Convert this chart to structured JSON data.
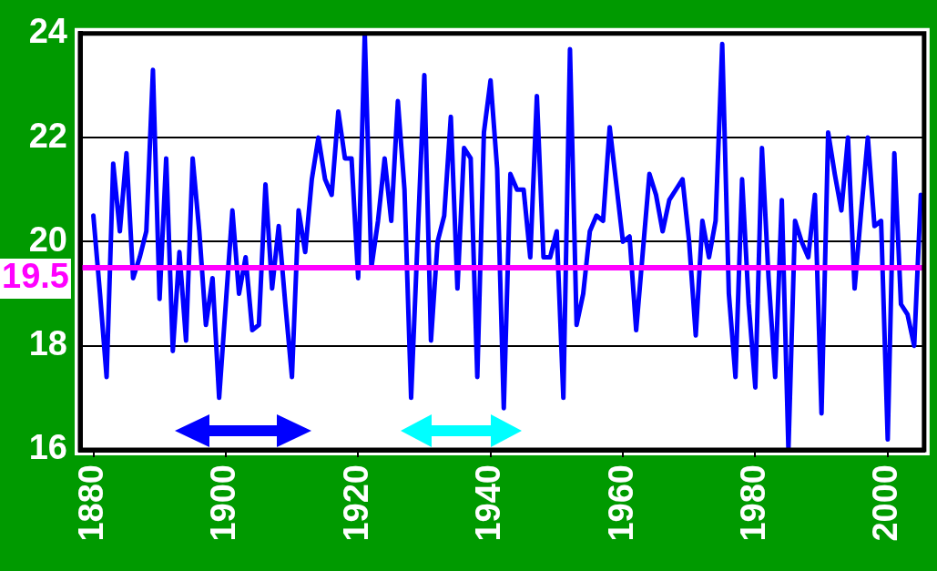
{
  "chart_data": {
    "type": "line",
    "x": [
      1880,
      1881,
      1882,
      1883,
      1884,
      1885,
      1886,
      1887,
      1888,
      1889,
      1890,
      1891,
      1892,
      1893,
      1894,
      1895,
      1896,
      1897,
      1898,
      1899,
      1900,
      1901,
      1902,
      1903,
      1904,
      1905,
      1906,
      1907,
      1908,
      1909,
      1910,
      1911,
      1912,
      1913,
      1914,
      1915,
      1916,
      1917,
      1918,
      1919,
      1920,
      1921,
      1922,
      1923,
      1924,
      1925,
      1926,
      1927,
      1928,
      1929,
      1930,
      1931,
      1932,
      1933,
      1934,
      1935,
      1936,
      1937,
      1938,
      1939,
      1940,
      1941,
      1942,
      1943,
      1944,
      1945,
      1946,
      1947,
      1948,
      1949,
      1950,
      1951,
      1952,
      1953,
      1954,
      1955,
      1956,
      1957,
      1958,
      1959,
      1960,
      1961,
      1962,
      1963,
      1964,
      1965,
      1966,
      1967,
      1968,
      1969,
      1970,
      1971,
      1972,
      1973,
      1974,
      1975,
      1976,
      1977,
      1978,
      1979,
      1980,
      1981,
      1982,
      1983,
      1984,
      1985,
      1986,
      1987,
      1988,
      1989,
      1990,
      1991,
      1992,
      1993,
      1994,
      1995,
      1996,
      1997,
      1998,
      1999,
      2000,
      2001,
      2002,
      2003,
      2004,
      2005
    ],
    "series": [
      {
        "color": "#0000ff",
        "values": [
          20.5,
          19.0,
          17.4,
          21.5,
          20.2,
          21.7,
          19.3,
          19.7,
          20.2,
          23.3,
          18.9,
          21.6,
          17.9,
          19.8,
          18.1,
          21.6,
          20.2,
          18.4,
          19.3,
          17.0,
          18.8,
          20.6,
          19.0,
          19.7,
          18.3,
          18.4,
          21.1,
          19.1,
          20.3,
          18.8,
          17.4,
          20.6,
          19.8,
          21.2,
          22.0,
          21.2,
          20.9,
          22.5,
          21.6,
          21.6,
          19.3,
          24.0,
          19.5,
          20.4,
          21.6,
          20.4,
          22.7,
          21.0,
          17.0,
          20.1,
          23.2,
          18.1,
          20.0,
          20.5,
          22.4,
          19.1,
          21.8,
          21.6,
          17.4,
          22.1,
          23.1,
          21.4,
          16.8,
          21.3,
          21.0,
          21.0,
          19.7,
          22.8,
          19.7,
          19.7,
          20.2,
          17.0,
          23.7,
          18.4,
          19.0,
          20.2,
          20.5,
          20.4,
          22.2,
          21.1,
          20.0,
          20.1,
          18.3,
          19.8,
          21.3,
          20.9,
          20.2,
          20.8,
          21.0,
          21.2,
          20.0,
          18.2,
          20.4,
          19.7,
          20.4,
          23.8,
          19.0,
          17.4,
          21.2,
          18.8,
          17.2,
          21.8,
          19.3,
          17.4,
          20.8,
          16.0,
          20.4,
          20.0,
          19.7,
          20.9,
          16.7,
          22.1,
          21.3,
          20.6,
          22.0,
          19.1,
          20.6,
          22.0,
          20.3,
          20.4,
          16.2,
          21.7,
          18.8,
          18.6,
          18.0,
          20.9
        ]
      }
    ],
    "xlim": [
      1878,
      2005.5
    ],
    "xticks": [
      1880,
      1900,
      1920,
      1940,
      1960,
      1980,
      2000
    ],
    "ylim": [
      16,
      24
    ],
    "yticks": [
      16,
      18,
      20,
      22,
      24
    ],
    "grid": "y",
    "ref_lines": [
      {
        "axis": "y",
        "value": 19.5,
        "label": "19.5",
        "color": "#ff00ff"
      }
    ]
  }
}
